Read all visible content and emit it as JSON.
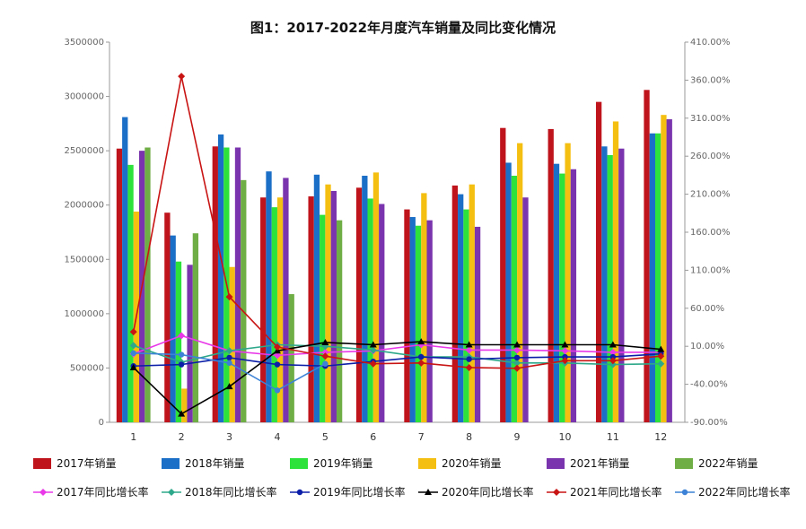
{
  "chart_data": {
    "type": "bar",
    "title": "图1：2017-2022年月度汽车销量及同比变化情况",
    "categories": [
      "1",
      "2",
      "3",
      "4",
      "5",
      "6",
      "7",
      "8",
      "9",
      "10",
      "11",
      "12"
    ],
    "y_left": {
      "min": 0,
      "max": 3500000,
      "ticks": [
        0,
        500000,
        1000000,
        1500000,
        2000000,
        2500000,
        3000000,
        3500000
      ],
      "tick_labels": [
        "0",
        "500000",
        "1000000",
        "1500000",
        "2000000",
        "2500000",
        "3000000",
        "3500000"
      ]
    },
    "y_right": {
      "min": -90,
      "max": 410,
      "ticks": [
        -90,
        -40,
        10,
        60,
        110,
        160,
        210,
        260,
        310,
        360,
        410
      ],
      "tick_labels": [
        "-90.00%",
        "-40.00%",
        "10.00%",
        "60.00%",
        "110.00%",
        "160.00%",
        "210.00%",
        "260.00%",
        "310.00%",
        "360.00%",
        "410.00%"
      ]
    },
    "bar_series": [
      {
        "name": "2017年销量",
        "color": "#c0141c",
        "values": [
          2520000,
          1930000,
          2540000,
          2070000,
          2080000,
          2160000,
          1960000,
          2180000,
          2710000,
          2700000,
          2950000,
          3060000
        ]
      },
      {
        "name": "2018年销量",
        "color": "#1c6fc7",
        "values": [
          2810000,
          1720000,
          2650000,
          2310000,
          2280000,
          2270000,
          1890000,
          2100000,
          2390000,
          2380000,
          2540000,
          2660000
        ]
      },
      {
        "name": "2019年销量",
        "color": "#2de23a",
        "values": [
          2370000,
          1480000,
          2530000,
          1980000,
          1910000,
          2060000,
          1810000,
          1960000,
          2270000,
          2290000,
          2460000,
          2660000
        ]
      },
      {
        "name": "2020年销量",
        "color": "#f5bf12",
        "values": [
          1940000,
          310000,
          1430000,
          2070000,
          2190000,
          2300000,
          2110000,
          2190000,
          2570000,
          2570000,
          2770000,
          2830000
        ]
      },
      {
        "name": "2021年销量",
        "color": "#7a34ad",
        "values": [
          2500000,
          1450000,
          2530000,
          2250000,
          2130000,
          2010000,
          1860000,
          1800000,
          2070000,
          2330000,
          2520000,
          2790000
        ]
      },
      {
        "name": "2022年销量",
        "color": "#6fad45",
        "values": [
          2530000,
          1740000,
          2230000,
          1180000,
          1860000,
          null,
          null,
          null,
          null,
          null,
          null,
          null
        ]
      }
    ],
    "line_series": [
      {
        "name": "2017年同比增长率",
        "color": "#e838e8",
        "marker": "diamond",
        "values": [
          0,
          24,
          4,
          -2,
          2,
          4,
          12,
          5,
          5,
          4,
          2,
          2
        ]
      },
      {
        "name": "2018年同比增长率",
        "color": "#2ea88a",
        "marker": "diamond",
        "values": [
          11,
          -11,
          4,
          12,
          10,
          5,
          -4,
          -4,
          -12,
          -12,
          -14,
          -13
        ]
      },
      {
        "name": "2019年同比增长率",
        "color": "#0b1ea8",
        "marker": "circle",
        "values": [
          -16,
          -14,
          -5,
          -14,
          -16,
          -10,
          -4,
          -7,
          -5,
          -4,
          -4,
          0
        ]
      },
      {
        "name": "2020年同比增长率",
        "color": "#000000",
        "marker": "triangle",
        "values": [
          -18,
          -79,
          -43,
          4,
          15,
          12,
          16,
          12,
          12,
          12,
          12,
          6
        ]
      },
      {
        "name": "2021年同比增长率",
        "color": "#c91414",
        "marker": "diamond",
        "values": [
          29,
          365,
          75,
          9,
          -3,
          -13,
          -12,
          -18,
          -19,
          -9,
          -9,
          -3
        ]
      },
      {
        "name": "2022年同比增长率",
        "color": "#3c82d6",
        "marker": "circle",
        "values": [
          1,
          -1,
          -12,
          -48,
          -13,
          null,
          null,
          null,
          null,
          null,
          null,
          null
        ]
      }
    ],
    "legend_position": "bottom",
    "grid": false
  }
}
